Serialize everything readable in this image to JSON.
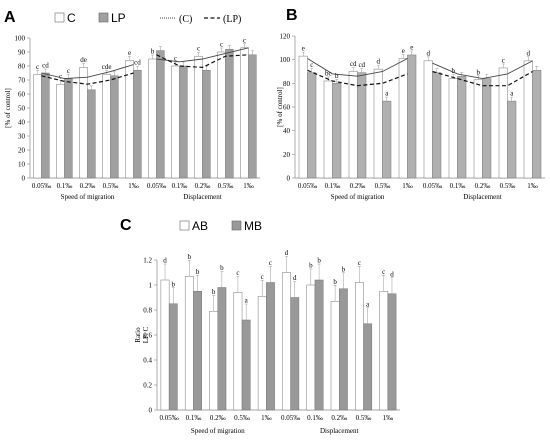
{
  "chart_data": [
    {
      "type": "bar",
      "panel": "A",
      "ylabel": "[% of control]",
      "ylim": [
        0,
        100
      ],
      "yticks": [
        0,
        10,
        20,
        30,
        40,
        50,
        60,
        70,
        80,
        90,
        100
      ],
      "categories": [
        "0.05‰",
        "0.1‰",
        "0.2‰",
        "0.5‰",
        "1‰",
        "0.05‰",
        "0.1‰",
        "0.2‰",
        "0.5‰",
        "1‰"
      ],
      "groups": [
        "Speed of migration",
        "Displacement"
      ],
      "series": [
        {
          "name": "C",
          "values": [
            74,
            67,
            79,
            74,
            84,
            85,
            80,
            87,
            90,
            93
          ],
          "letters": [
            "c",
            "c",
            "de",
            "cde",
            "e",
            "b",
            "c",
            "c",
            "c",
            "c"
          ]
        },
        {
          "name": "LP",
          "values": [
            75,
            71,
            63,
            73,
            77,
            91,
            80,
            77,
            92,
            88
          ],
          "letters": [
            "cd",
            "c",
            "",
            "",
            "cd",
            "",
            "",
            "",
            "",
            ""
          ]
        }
      ],
      "trendlines": [
        {
          "name": "(C)",
          "values": [
            75,
            71,
            72,
            76,
            81,
            85,
            83,
            85,
            89,
            93
          ]
        },
        {
          "name": "(LP)",
          "values": [
            73,
            69,
            67,
            70,
            75,
            88,
            80,
            79,
            87,
            88
          ]
        }
      ]
    },
    {
      "type": "bar",
      "panel": "B",
      "ylabel": "[% of control]",
      "ylim": [
        0,
        120
      ],
      "yticks": [
        0,
        20,
        40,
        60,
        80,
        100,
        120
      ],
      "categories": [
        "0.05‰",
        "0.1‰",
        "0.2‰",
        "0.5‰",
        "1‰",
        "0.05‰",
        "0.1‰",
        "0.2‰",
        "0.5‰",
        "1‰"
      ],
      "groups": [
        "Speed of migration",
        "Displacement"
      ],
      "series": [
        {
          "name": "C",
          "values": [
            103,
            82,
            90,
            92,
            101,
            99,
            84,
            83,
            93,
            99
          ],
          "letters": [
            "e",
            "bc",
            "cd",
            "d",
            "e",
            "d",
            "b",
            "b",
            "c",
            "d"
          ]
        },
        {
          "name": "LP",
          "values": [
            89,
            80,
            89,
            65,
            104,
            89,
            86,
            84,
            65,
            91
          ],
          "letters": [
            "c",
            "b",
            "cd",
            "a",
            "e",
            "",
            "",
            "",
            "a",
            ""
          ]
        }
      ],
      "trendlines": [
        {
          "name": "(C)",
          "values": [
            101,
            88,
            86,
            90,
            101,
            97,
            88,
            84,
            88,
            99
          ]
        },
        {
          "name": "(LP)",
          "values": [
            91,
            82,
            78,
            80,
            88,
            90,
            84,
            78,
            78,
            90
          ]
        }
      ]
    },
    {
      "type": "bar",
      "panel": "C",
      "ylabel": "Ratio LP: C",
      "ylim": [
        0,
        1.2
      ],
      "yticks": [
        "0",
        "0.2",
        "0.4",
        "0.6",
        "0.8",
        "1",
        "1.2"
      ],
      "categories": [
        "0.05‰",
        "0.1‰",
        "0.2‰",
        "0.5‰",
        "1‰",
        "0.05‰",
        "0.1‰",
        "0.2‰",
        "0.5‰",
        "1‰"
      ],
      "groups": [
        "Speed of migration",
        "Displacement"
      ],
      "series": [
        {
          "name": "AB",
          "values": [
            1.04,
            1.07,
            0.79,
            0.94,
            0.91,
            1.1,
            1.0,
            0.87,
            1.02,
            0.95
          ],
          "letters": [
            "d",
            "b",
            "b",
            "c",
            "c",
            "d",
            "b",
            "b",
            "c",
            "c"
          ]
        },
        {
          "name": "MB",
          "values": [
            0.85,
            0.95,
            0.98,
            0.72,
            1.02,
            0.9,
            1.04,
            0.97,
            0.69,
            0.93
          ],
          "letters": [
            "b",
            "b",
            "b",
            "a",
            "c",
            "d",
            "b",
            "b",
            "a",
            "d"
          ]
        }
      ]
    }
  ]
}
